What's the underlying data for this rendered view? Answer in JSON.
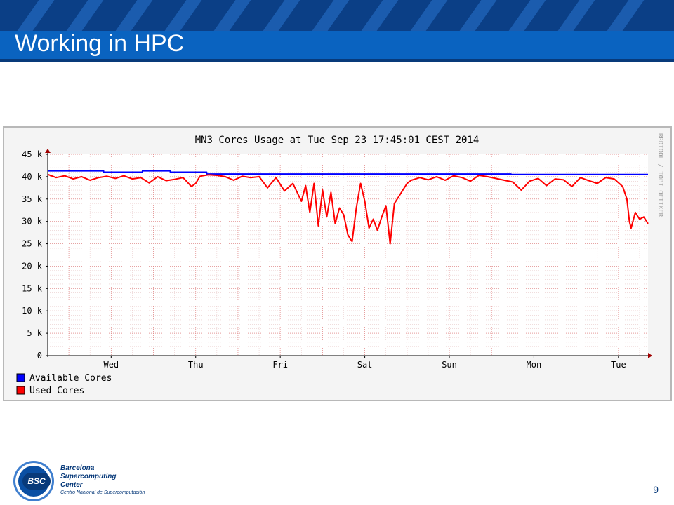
{
  "slide": {
    "title": "Working in HPC",
    "page_number": "9"
  },
  "logo": {
    "badge": "BSC",
    "line1": "Barcelona",
    "line2": "Supercomputing",
    "line3": "Center",
    "subtitle": "Centro Nacional de Supercomputación"
  },
  "chart_data": {
    "type": "line",
    "title": "MN3 Cores Usage at Tue Sep 23 17:45:01 CEST 2014",
    "watermark": "RRDTOOL / TOBI OETIKER",
    "xlabel": "",
    "ylabel": "",
    "ylim": [
      0,
      45000
    ],
    "yticks": [
      0,
      5000,
      10000,
      15000,
      20000,
      25000,
      30000,
      35000,
      40000,
      45000
    ],
    "ytick_labels": [
      "0",
      "5 k",
      "10 k",
      "15 k",
      "20 k",
      "25 k",
      "30 k",
      "35 k",
      "40 k",
      "45 k"
    ],
    "xlim": [
      0,
      7.1
    ],
    "xticks": [
      0.75,
      1.75,
      2.75,
      3.75,
      4.75,
      5.75,
      6.75
    ],
    "xtick_labels": [
      "Wed",
      "Thu",
      "Fri",
      "Sat",
      "Sun",
      "Mon",
      "Tue"
    ],
    "grid": true,
    "legend_position": "bottom-left",
    "series": [
      {
        "name": "Available Cores",
        "color": "#0000ff",
        "x": [
          0,
          0.66,
          0.66,
          1.12,
          1.12,
          1.45,
          1.45,
          1.88,
          1.88,
          5.48,
          5.48,
          7.1
        ],
        "values": [
          41300,
          41300,
          41000,
          41000,
          41300,
          41300,
          41000,
          41000,
          40600,
          40600,
          40500,
          40500
        ]
      },
      {
        "name": "Used Cores",
        "color": "#ff0000",
        "x": [
          0,
          0.1,
          0.2,
          0.3,
          0.4,
          0.5,
          0.6,
          0.7,
          0.8,
          0.9,
          1.0,
          1.1,
          1.2,
          1.3,
          1.4,
          1.5,
          1.6,
          1.7,
          1.75,
          1.8,
          1.9,
          2.0,
          2.1,
          2.2,
          2.3,
          2.4,
          2.5,
          2.6,
          2.7,
          2.8,
          2.9,
          3.0,
          3.05,
          3.1,
          3.15,
          3.2,
          3.25,
          3.3,
          3.35,
          3.4,
          3.45,
          3.5,
          3.55,
          3.6,
          3.65,
          3.7,
          3.75,
          3.8,
          3.85,
          3.9,
          3.95,
          4.0,
          4.05,
          4.1,
          4.15,
          4.2,
          4.25,
          4.3,
          4.4,
          4.5,
          4.6,
          4.7,
          4.8,
          4.9,
          5.0,
          5.1,
          5.2,
          5.3,
          5.4,
          5.5,
          5.6,
          5.7,
          5.8,
          5.9,
          6.0,
          6.1,
          6.2,
          6.3,
          6.4,
          6.5,
          6.6,
          6.7,
          6.8,
          6.85,
          6.88,
          6.9,
          6.95,
          7.0,
          7.05,
          7.1
        ],
        "values": [
          40500,
          39800,
          40200,
          39500,
          40000,
          39200,
          39800,
          40100,
          39600,
          40200,
          39500,
          39800,
          38600,
          40000,
          39100,
          39400,
          39800,
          37800,
          38500,
          40100,
          40400,
          40300,
          40000,
          39200,
          40100,
          39800,
          40000,
          37500,
          39800,
          36800,
          38500,
          34500,
          38000,
          32000,
          38500,
          29000,
          37000,
          31000,
          36500,
          29500,
          33000,
          31500,
          27000,
          25500,
          33000,
          38500,
          34500,
          28500,
          30500,
          28000,
          31000,
          33500,
          25000,
          34000,
          35500,
          37000,
          38500,
          39200,
          39800,
          39300,
          40000,
          39200,
          40200,
          39800,
          39000,
          40300,
          40000,
          39600,
          39200,
          38800,
          37000,
          39000,
          39600,
          38000,
          39500,
          39300,
          37800,
          39800,
          39100,
          38500,
          39800,
          39500,
          37800,
          35000,
          30000,
          28500,
          32000,
          30500,
          31000,
          29500
        ]
      }
    ]
  }
}
